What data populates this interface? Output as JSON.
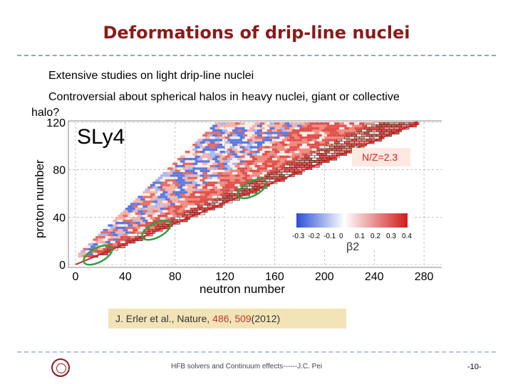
{
  "slide": {
    "title": "Deformations of drip-line nuclei",
    "bullet1": "Extensive studies on light drip-line nuclei",
    "bullet2_line1": "Controversial about spherical halos in heavy nuclei, giant or collective",
    "bullet2_line2": "halo?",
    "citation_authors": "J. Erler et al.,  Nature, ",
    "citation_vol": "486",
    "citation_sep": ", ",
    "citation_page": "509",
    "citation_year": "(2012)",
    "footer": "HFB solvers and Continuum effects------J.C. Pei",
    "page_number": "-10-"
  },
  "colors": {
    "title": "#8b1a1a",
    "accent": "#c0392b",
    "dash": "#8fa6c9",
    "line": "#d62020"
  },
  "chart_data": {
    "type": "heatmap",
    "title": "SLy4",
    "xlabel": "neutron number",
    "ylabel": "proton number",
    "xlim": [
      0,
      300
    ],
    "ylim": [
      0,
      120
    ],
    "xticks": [
      0,
      40,
      80,
      120,
      160,
      200,
      240,
      280
    ],
    "yticks": [
      0,
      40,
      80,
      120
    ],
    "line_label": "N/Z=2.3",
    "line_slope": 2.3,
    "colorbar": {
      "label": "β2",
      "ticks": [
        "-0.3",
        "-0.2",
        "-0.1",
        "0",
        "0.1",
        "0.2",
        "0.3",
        "0.4"
      ],
      "min": -0.3,
      "max": 0.4
    },
    "highlight_regions": [
      {
        "x": 18,
        "y": 8
      },
      {
        "x": 65,
        "y": 29
      },
      {
        "x": 142,
        "y": 64
      }
    ]
  }
}
